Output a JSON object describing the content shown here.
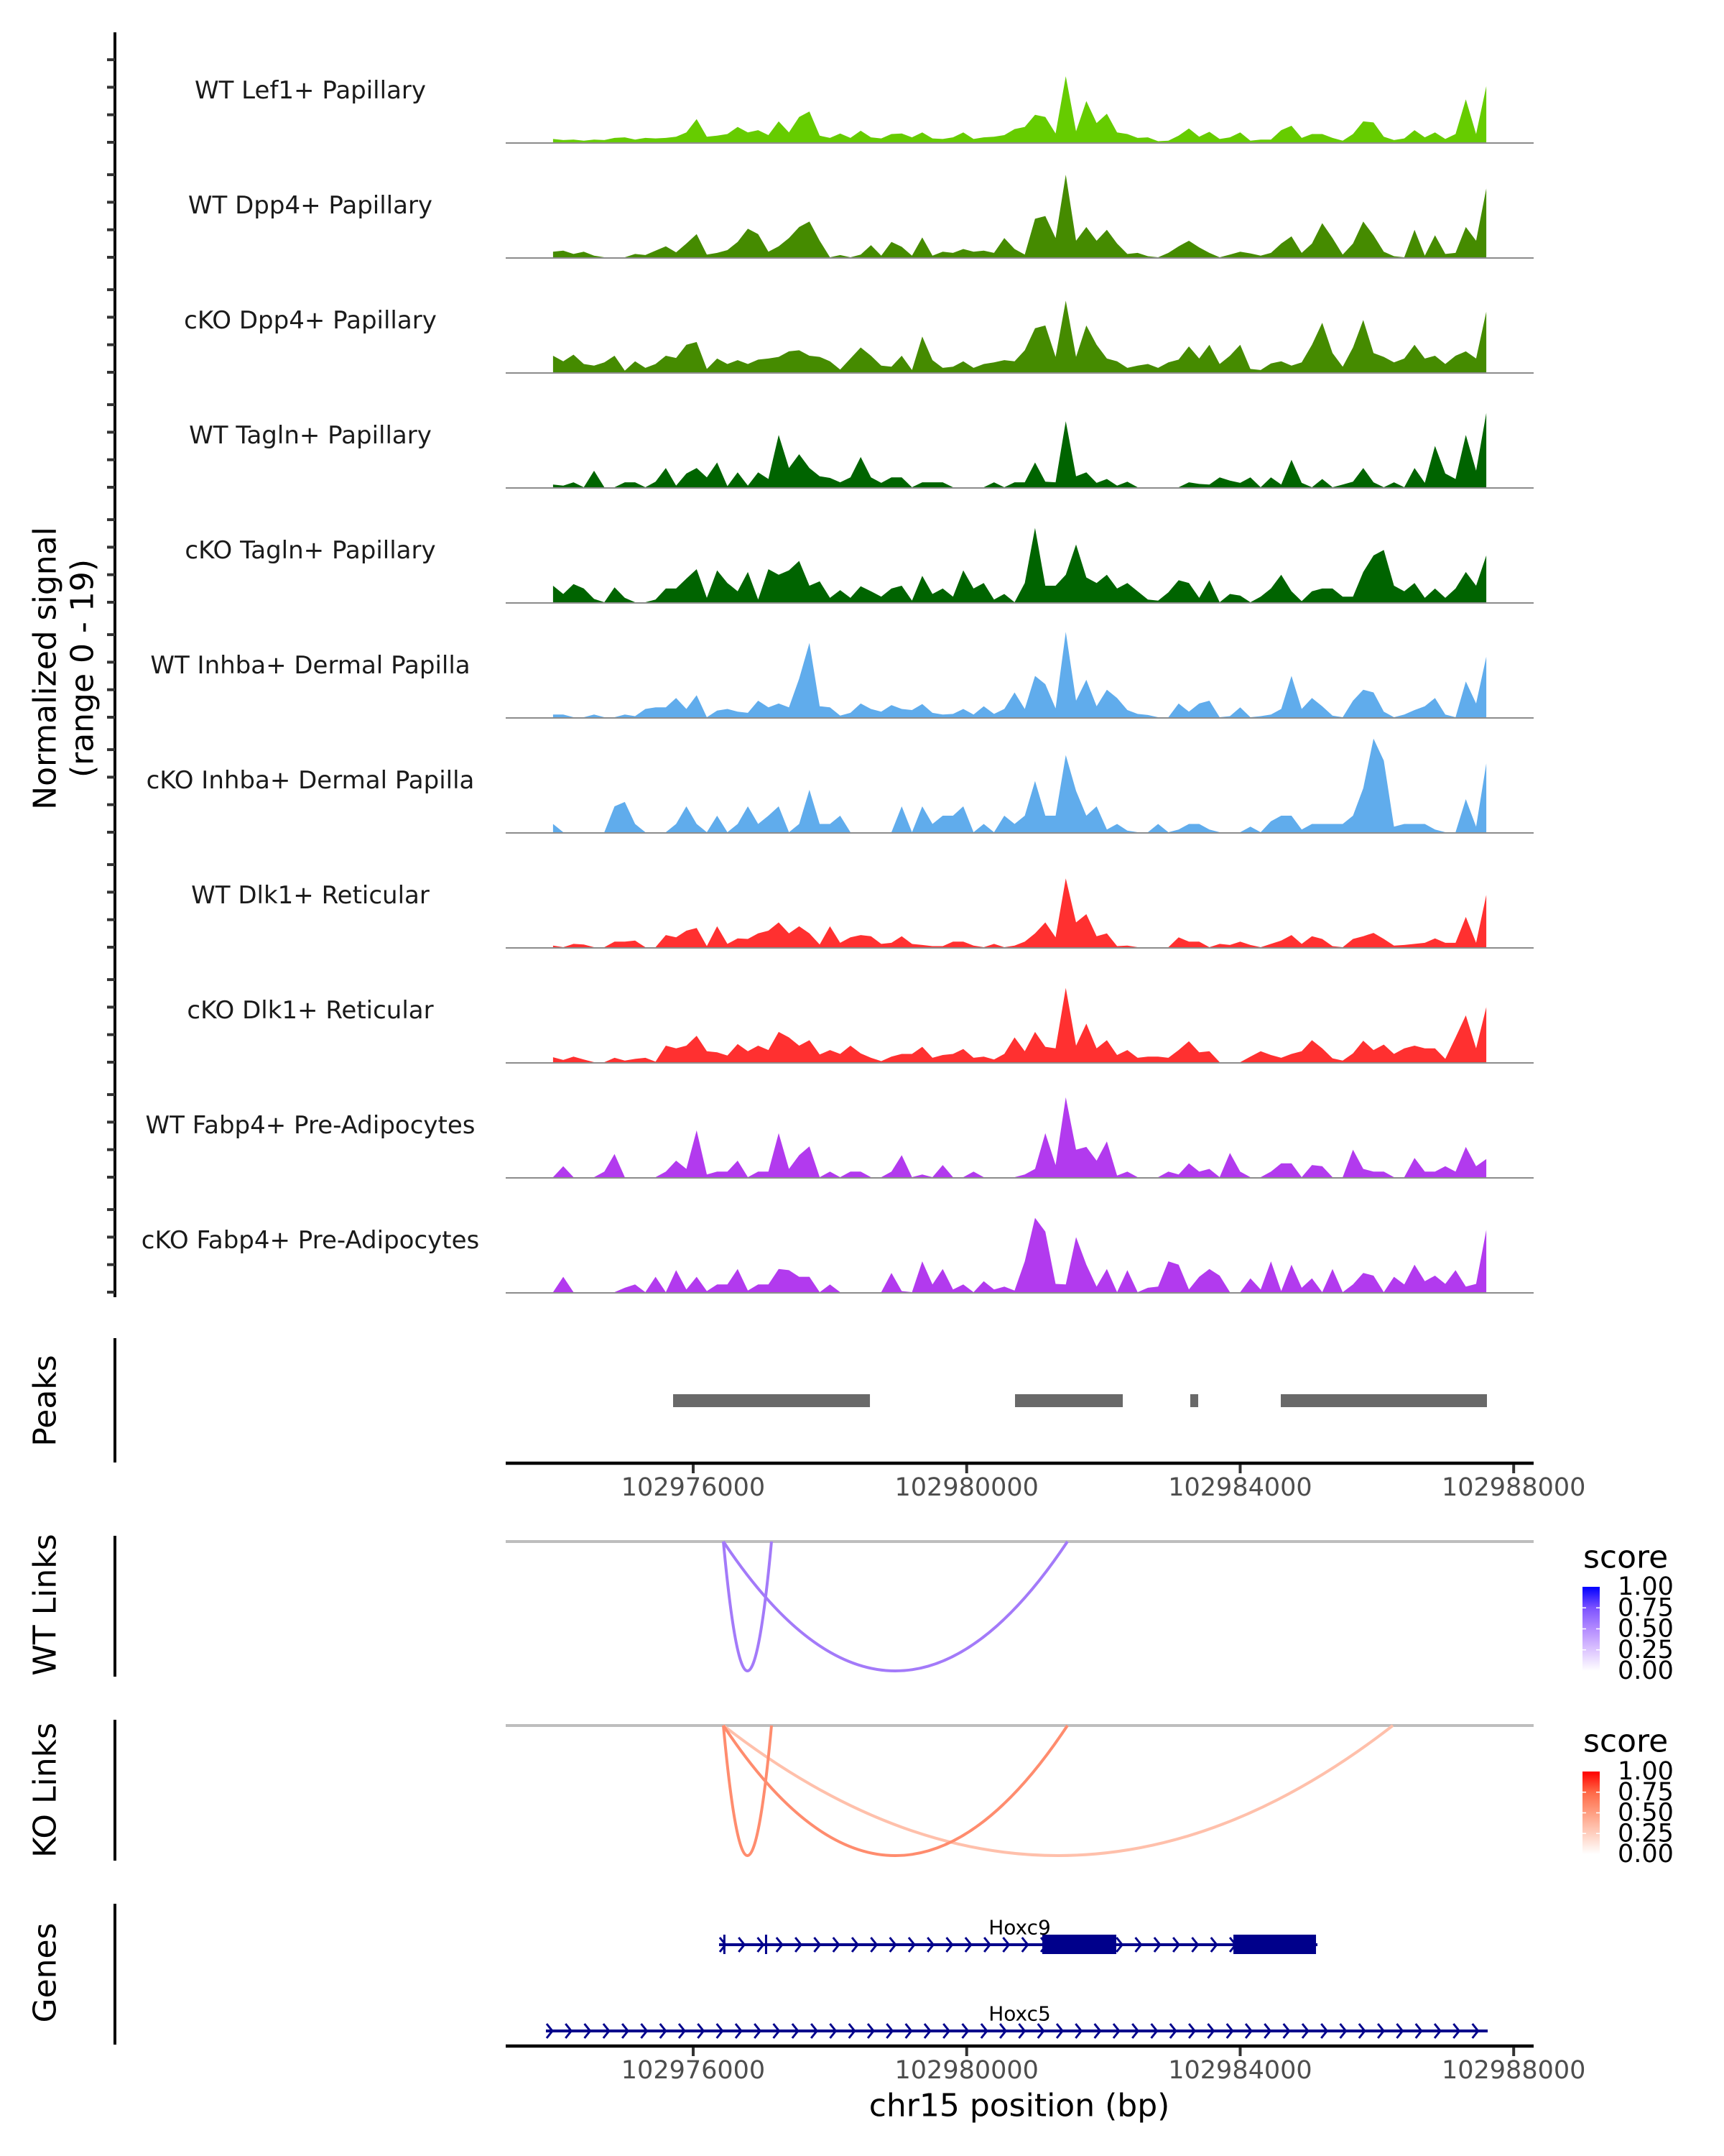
{
  "figure": {
    "y_axis_title": [
      "Normalized signal",
      "(range 0 - 19)"
    ],
    "panel_labels": {
      "peaks": "Peaks",
      "wt_links": "WT Links",
      "ko_links": "KO Links",
      "genes": "Genes"
    },
    "x_axis_title": "chr15 position (bp)"
  },
  "legends": [
    {
      "panel": "WT Links",
      "title": "score",
      "labels": [
        "1.00",
        "0.75",
        "0.50",
        "0.25",
        "0.00"
      ],
      "gradient": [
        "#ffffff",
        "#dcc4ff",
        "#b38bff",
        "#7c52ff",
        "#0000ff"
      ]
    },
    {
      "panel": "KO Links",
      "title": "score",
      "labels": [
        "1.00",
        "0.75",
        "0.50",
        "0.25",
        "0.00"
      ],
      "gradient": [
        "#ffffff",
        "#ffcfbf",
        "#ff9e81",
        "#ff6846",
        "#ff0000"
      ]
    }
  ],
  "chart_data": {
    "type": "area",
    "title": "",
    "xlabel": "chr15 position (bp)",
    "ylabel": "Normalized signal (range 0 - 19)",
    "chromosome": "chr15",
    "xlim": [
      102973258,
      102988292
    ],
    "ylim": [
      0,
      19
    ],
    "y_ticks": [
      0,
      5,
      10,
      15
    ],
    "x_ticks": [
      102976000,
      102980000,
      102984000,
      102988000
    ],
    "x_tick_labels": [
      "102976000",
      "102980000",
      "102984000",
      "102988000"
    ],
    "grid": false,
    "legend": "right",
    "bin_start_bp": 102973950,
    "bin_size_bp": 150,
    "series": [
      {
        "name": "WT Lef1+ Papillary",
        "color": "#66cc00",
        "values": [
          0.6,
          0.4,
          0.5,
          0.3,
          0.5,
          0.4,
          0.8,
          0.9,
          0.5,
          0.8,
          0.7,
          0.8,
          1.0,
          1.8,
          4.2,
          1.0,
          1.2,
          1.5,
          2.8,
          1.8,
          2.2,
          1.3,
          3.8,
          1.8,
          4.6,
          5.6,
          1.2,
          0.8,
          1.6,
          0.8,
          2.1,
          0.9,
          0.7,
          1.5,
          1.6,
          0.9,
          1.8,
          0.7,
          0.6,
          0.9,
          1.8,
          0.6,
          0.9,
          1.0,
          1.3,
          2.4,
          2.8,
          5.0,
          4.6,
          1.6,
          12.0,
          2.0,
          7.5,
          3.5,
          5.2,
          1.8,
          1.5,
          0.8,
          0.9,
          0.2,
          0.3,
          1.2,
          2.5,
          1.0,
          1.9,
          0.6,
          0.9,
          1.8,
          0.3,
          0.5,
          0.5,
          2.2,
          3.0,
          0.8,
          1.5,
          1.5,
          0.8,
          0.3,
          1.5,
          3.8,
          3.6,
          1.0,
          0.4,
          0.7,
          2.2,
          0.9,
          1.8,
          0.6,
          1.5,
          7.8,
          1.5,
          10.2
        ]
      },
      {
        "name": "WT Dpp4+ Papillary",
        "color": "#458b00",
        "values": [
          1.0,
          1.2,
          0.6,
          1.0,
          0.3,
          0,
          0,
          0,
          0.6,
          0.4,
          1.2,
          2.0,
          0.9,
          2.5,
          4.2,
          0.5,
          0.8,
          1.3,
          2.8,
          5.2,
          4.2,
          1.0,
          2.0,
          3.5,
          5.5,
          6.5,
          3.0,
          0,
          0.4,
          0,
          0.5,
          2.2,
          0.3,
          2.8,
          1.9,
          0.3,
          3.6,
          0.3,
          1.0,
          0.8,
          1.5,
          1.0,
          1.2,
          0.8,
          3.5,
          1.5,
          0.5,
          7.0,
          7.5,
          3.5,
          15.0,
          3.0,
          5.5,
          3.0,
          5.0,
          2.5,
          0.6,
          0.8,
          0.2,
          0,
          0.8,
          2.0,
          3.0,
          1.8,
          0.8,
          0,
          0.5,
          1.0,
          0.7,
          0.3,
          0.8,
          2.5,
          3.8,
          0.8,
          2.5,
          6.2,
          3.5,
          0.5,
          2.5,
          6.5,
          4.0,
          1.0,
          0.2,
          0,
          5.0,
          0.3,
          4.0,
          0.6,
          0.8,
          5.5,
          3.0,
          12.5
        ]
      },
      {
        "name": "cKO Dpp4+ Papillary",
        "color": "#458b00",
        "values": [
          3.0,
          2.0,
          3.2,
          1.5,
          1.2,
          1.8,
          3.0,
          0.3,
          2.0,
          0.8,
          1.5,
          3.0,
          2.6,
          5.0,
          5.5,
          0.6,
          2.5,
          1.5,
          2.2,
          1.5,
          2.3,
          2.5,
          2.8,
          3.8,
          4.0,
          3.0,
          2.8,
          2.0,
          0.5,
          2.5,
          4.5,
          3.0,
          1.2,
          1.0,
          3.0,
          0.4,
          6.5,
          2.2,
          0.8,
          1.0,
          2.0,
          0.8,
          1.5,
          1.8,
          2.2,
          2.0,
          4.0,
          8.0,
          8.5,
          2.8,
          13.0,
          2.8,
          8.5,
          5.0,
          2.5,
          2.0,
          0.8,
          1.2,
          1.5,
          0.8,
          1.8,
          2.3,
          4.7,
          2.5,
          5.0,
          1.5,
          3.0,
          5.0,
          0.6,
          0.4,
          1.6,
          2.0,
          1.2,
          1.8,
          5.0,
          9.0,
          3.5,
          1.0,
          4.5,
          9.5,
          3.5,
          2.8,
          1.8,
          2.5,
          5.0,
          2.5,
          3.0,
          1.5,
          3.0,
          3.8,
          2.5,
          11.0
        ]
      },
      {
        "name": "WT Tagln+ Papillary",
        "color": "#006400",
        "values": [
          0.5,
          0.3,
          0.9,
          0,
          3.0,
          0,
          0,
          0.9,
          0.9,
          0,
          1.0,
          3.5,
          0.3,
          2.5,
          3.5,
          1.8,
          4.5,
          0.2,
          2.7,
          0.3,
          2.7,
          1.5,
          9.5,
          3.5,
          6.0,
          3.5,
          2.0,
          1.7,
          0.9,
          1.8,
          5.5,
          1.8,
          0.8,
          1.8,
          1.8,
          0,
          0.9,
          0.9,
          0.9,
          0,
          0,
          0,
          0,
          0.9,
          0,
          0.9,
          0.9,
          4.5,
          1.0,
          0.9,
          12.0,
          2.0,
          2.7,
          0.8,
          1.5,
          0.3,
          1.0,
          0,
          0,
          0,
          0,
          0,
          0.9,
          0.6,
          0.5,
          1.8,
          1.2,
          0.8,
          1.8,
          0,
          1.8,
          0.5,
          5.0,
          0.8,
          0,
          1.5,
          0,
          0.5,
          1.0,
          3.5,
          0.9,
          0,
          0.9,
          0,
          3.5,
          0.8,
          7.5,
          2.5,
          1.5,
          9.5,
          3.0,
          13.5
        ]
      },
      {
        "name": "cKO Tagln+ Papillary",
        "color": "#006400",
        "values": [
          3.0,
          1.5,
          3.3,
          2.5,
          0.6,
          0,
          2.7,
          0.8,
          0,
          0,
          0.5,
          2.5,
          2.5,
          4.3,
          6.0,
          0.8,
          5.8,
          3.5,
          2.0,
          5.5,
          0.5,
          6.0,
          5.0,
          5.8,
          7.5,
          3.0,
          3.8,
          0.8,
          2.2,
          0.8,
          2.9,
          2.0,
          1.0,
          2.5,
          3.0,
          0.3,
          4.8,
          1.5,
          2.5,
          1.0,
          5.8,
          2.5,
          3.5,
          0.5,
          1.5,
          0,
          3.5,
          13.5,
          3.0,
          3.0,
          5.0,
          10.5,
          4.5,
          3.5,
          5.0,
          2.5,
          3.5,
          2.0,
          0.5,
          0.3,
          1.8,
          4.0,
          3.5,
          0.8,
          4.0,
          0,
          1.5,
          1.2,
          0,
          1.0,
          2.5,
          5.0,
          2.0,
          0.2,
          2.0,
          2.5,
          2.5,
          1.0,
          1.0,
          5.5,
          8.5,
          9.5,
          3.0,
          2.0,
          3.5,
          0.8,
          2.5,
          0.8,
          2.5,
          5.5,
          3.0,
          8.5
        ]
      },
      {
        "name": "WT Inhba+ Dermal Papilla",
        "color": "#60acec",
        "values": [
          0.5,
          0.5,
          0,
          0,
          0.5,
          0,
          0,
          0.5,
          0.2,
          1.5,
          1.8,
          1.8,
          3.5,
          1.5,
          4.0,
          0,
          1.2,
          1.5,
          1.0,
          0.8,
          3.0,
          1.8,
          2.5,
          1.8,
          7.0,
          13.5,
          2.0,
          1.8,
          0.3,
          0.8,
          2.5,
          1.5,
          1.0,
          2.2,
          1.5,
          1.3,
          2.4,
          0.8,
          0.5,
          0.6,
          1.5,
          0.5,
          2.0,
          0.6,
          1.5,
          4.5,
          1.5,
          7.5,
          6.0,
          1.6,
          15.5,
          3.0,
          6.8,
          2.0,
          5.0,
          3.5,
          1.3,
          0.6,
          0.4,
          0,
          0,
          2.5,
          1.0,
          2.5,
          3.0,
          0,
          0.2,
          1.8,
          0,
          0.2,
          0.5,
          1.5,
          7.5,
          1.5,
          3.5,
          2.0,
          0.3,
          0,
          3.0,
          5.0,
          4.5,
          1.0,
          0,
          0.5,
          1.3,
          2.0,
          3.5,
          0.5,
          0,
          6.5,
          2.5,
          11.0
        ]
      },
      {
        "name": "cKO Inhba+ Dermal Papilla",
        "color": "#60acec",
        "values": [
          1.5,
          0,
          0,
          0,
          0,
          0,
          4.7,
          5.5,
          1.5,
          0,
          0,
          0,
          1.5,
          4.7,
          1.5,
          0,
          3.0,
          0,
          1.5,
          4.7,
          1.5,
          3.0,
          4.7,
          0,
          1.5,
          7.7,
          1.5,
          1.5,
          3.0,
          0,
          0,
          0,
          0,
          0,
          4.7,
          0,
          4.7,
          1.5,
          3.0,
          3.0,
          4.7,
          0,
          1.5,
          0,
          3.0,
          1.5,
          3.0,
          9.3,
          3.0,
          3.0,
          14.0,
          7.5,
          3.0,
          4.7,
          0.5,
          1.5,
          0.3,
          0,
          0,
          1.5,
          0,
          0.5,
          1.5,
          1.5,
          0.5,
          0,
          0,
          0,
          1.0,
          0,
          2.0,
          3.0,
          3.0,
          0.5,
          1.5,
          1.5,
          1.5,
          1.5,
          3.0,
          8.0,
          17.0,
          13.0,
          1.0,
          1.5,
          1.5,
          1.5,
          0.5,
          0,
          0,
          6.0,
          1.0,
          12.5
        ]
      },
      {
        "name": "WT Dlk1+ Reticular",
        "color": "#ff3030",
        "values": [
          0.3,
          0,
          0.6,
          0.5,
          0,
          0,
          1.0,
          1.0,
          1.2,
          0,
          0,
          2.2,
          1.8,
          3.0,
          3.5,
          0.2,
          3.8,
          0.6,
          1.6,
          1.5,
          2.5,
          3.0,
          4.5,
          2.5,
          3.8,
          2.5,
          0.5,
          3.8,
          0.8,
          1.8,
          2.2,
          2.0,
          0.6,
          0.8,
          2.0,
          0.6,
          0.4,
          0.2,
          0.2,
          1.0,
          1.0,
          0.3,
          0,
          0.6,
          0,
          0.3,
          1.0,
          2.5,
          4.5,
          1.8,
          12.5,
          4.5,
          6.0,
          2.0,
          2.5,
          0.2,
          0.3,
          0,
          0,
          0,
          0,
          1.8,
          1.0,
          1.0,
          0,
          0.6,
          0.4,
          1.0,
          0.4,
          0,
          0.6,
          1.2,
          2.2,
          0.6,
          2.0,
          1.5,
          0.2,
          0,
          1.5,
          2.0,
          2.6,
          1.5,
          0.3,
          0.4,
          0.6,
          0.8,
          1.6,
          0.8,
          0.8,
          5.5,
          0.8,
          9.5
        ]
      },
      {
        "name": "cKO Dlk1+ Reticular",
        "color": "#ff3030",
        "values": [
          0.9,
          0.4,
          1.0,
          0.5,
          0,
          0,
          0.8,
          0.3,
          0.6,
          0.8,
          0.1,
          3.0,
          2.5,
          3.0,
          4.8,
          2.0,
          1.8,
          1.2,
          3.3,
          2.0,
          3.0,
          2.2,
          5.5,
          4.5,
          3.0,
          4.0,
          1.4,
          2.2,
          1.5,
          3.0,
          1.6,
          0.8,
          0.2,
          1.0,
          1.5,
          1.5,
          2.8,
          0.8,
          1.3,
          1.5,
          2.4,
          0.8,
          1.0,
          0.5,
          1.5,
          4.5,
          2.0,
          5.5,
          2.8,
          2.5,
          13.5,
          3.0,
          7.0,
          2.5,
          4.0,
          1.3,
          2.2,
          0.8,
          1.0,
          1.0,
          0.8,
          2.2,
          3.8,
          1.8,
          2.0,
          0,
          0,
          0,
          1.0,
          2.0,
          1.3,
          0.8,
          1.5,
          2.0,
          4.0,
          2.5,
          0.7,
          0.3,
          1.6,
          3.9,
          2.2,
          3.2,
          1.5,
          2.5,
          3.0,
          2.5,
          2.5,
          0.6,
          4.5,
          8.5,
          2.5,
          10.0
        ]
      },
      {
        "name": "WT Fabp4+ Pre-Adipocytes",
        "color": "#b23aee",
        "values": [
          0,
          2.0,
          0,
          0,
          0,
          1.0,
          4.2,
          0,
          0,
          0,
          0,
          1.0,
          3.0,
          1.5,
          8.5,
          0.5,
          1.0,
          1.0,
          3.0,
          0,
          1.0,
          1.0,
          8.0,
          1.5,
          4.0,
          5.6,
          0,
          1.0,
          0,
          1.0,
          1.0,
          0,
          0,
          1.0,
          4.0,
          0,
          0.5,
          0,
          2.2,
          0,
          0,
          1.0,
          0,
          0,
          0,
          0,
          0.5,
          1.5,
          8.0,
          2.2,
          14.5,
          5.0,
          5.5,
          3.0,
          6.5,
          0.3,
          1.0,
          0,
          0,
          0,
          1.0,
          0.5,
          2.5,
          1.0,
          1.5,
          0,
          4.4,
          1.0,
          0,
          0,
          1.0,
          2.5,
          2.5,
          0,
          2.2,
          2.0,
          0,
          0,
          5.0,
          1.5,
          1.0,
          1.0,
          0,
          0,
          3.5,
          1.0,
          1.0,
          2.0,
          1.0,
          5.5,
          2.0,
          3.3
        ]
      },
      {
        "name": "cKO Fabp4+ Pre-Adipocytes",
        "color": "#b23aee",
        "values": [
          0,
          2.8,
          0,
          0,
          0,
          0,
          0,
          0.8,
          1.4,
          0,
          2.8,
          0,
          4.0,
          0.5,
          2.8,
          0.2,
          1.4,
          1.4,
          4.2,
          0.3,
          1.4,
          1.4,
          4.2,
          4.0,
          2.8,
          2.8,
          0,
          1.4,
          0,
          0,
          0,
          0,
          0,
          3.5,
          0.2,
          0,
          5.6,
          1.4,
          4.2,
          0.5,
          1.4,
          0,
          2.0,
          0.5,
          1.0,
          0.3,
          5.6,
          13.5,
          11.0,
          1.5,
          1.4,
          10.0,
          5.0,
          1.0,
          4.2,
          0,
          4.0,
          0,
          0.8,
          1.0,
          5.6,
          5.0,
          0.5,
          2.8,
          4.2,
          3.0,
          0,
          0,
          2.5,
          0.5,
          5.6,
          0.2,
          5.0,
          0.8,
          2.5,
          0,
          4.2,
          0,
          1.4,
          3.5,
          3.0,
          0,
          2.8,
          1.4,
          5.0,
          2.0,
          3.0,
          1.5,
          4.0,
          1.0,
          1.5,
          11.3
        ]
      }
    ],
    "peaks": [
      {
        "start": 102975706,
        "end": 102978585
      },
      {
        "start": 102980707,
        "end": 102982283
      },
      {
        "start": 102983270,
        "end": 102983386
      },
      {
        "start": 102984594,
        "end": 102987609
      }
    ],
    "peak_color": "#696969",
    "links": {
      "WT": [
        {
          "start": 102976441,
          "end": 102977145,
          "score": 0.58,
          "color": "#a37af9"
        },
        {
          "start": 102976441,
          "end": 102981474,
          "score": 0.58,
          "color": "#a37af9"
        }
      ],
      "KO": [
        {
          "start": 102976441,
          "end": 102986233,
          "score": 0.33,
          "color": "#ffc0ab"
        },
        {
          "start": 102976441,
          "end": 102977145,
          "score": 0.58,
          "color": "#ff8c6e"
        },
        {
          "start": 102976441,
          "end": 102981474,
          "score": 0.58,
          "color": "#ff8c6e"
        }
      ]
    },
    "genes": [
      {
        "name": "Hoxc9",
        "strand": "+",
        "start": 102976378,
        "end": 102985130,
        "color": "#00008b",
        "exons": [
          [
            102976440,
            102976465
          ],
          [
            102977050,
            102977075
          ],
          [
            102981106,
            102982188
          ],
          [
            102983901,
            102985109
          ]
        ]
      },
      {
        "name": "Hoxc5",
        "strand": "+",
        "start": 102973846,
        "end": 102987620,
        "color": "#00008b",
        "exons": []
      }
    ]
  }
}
